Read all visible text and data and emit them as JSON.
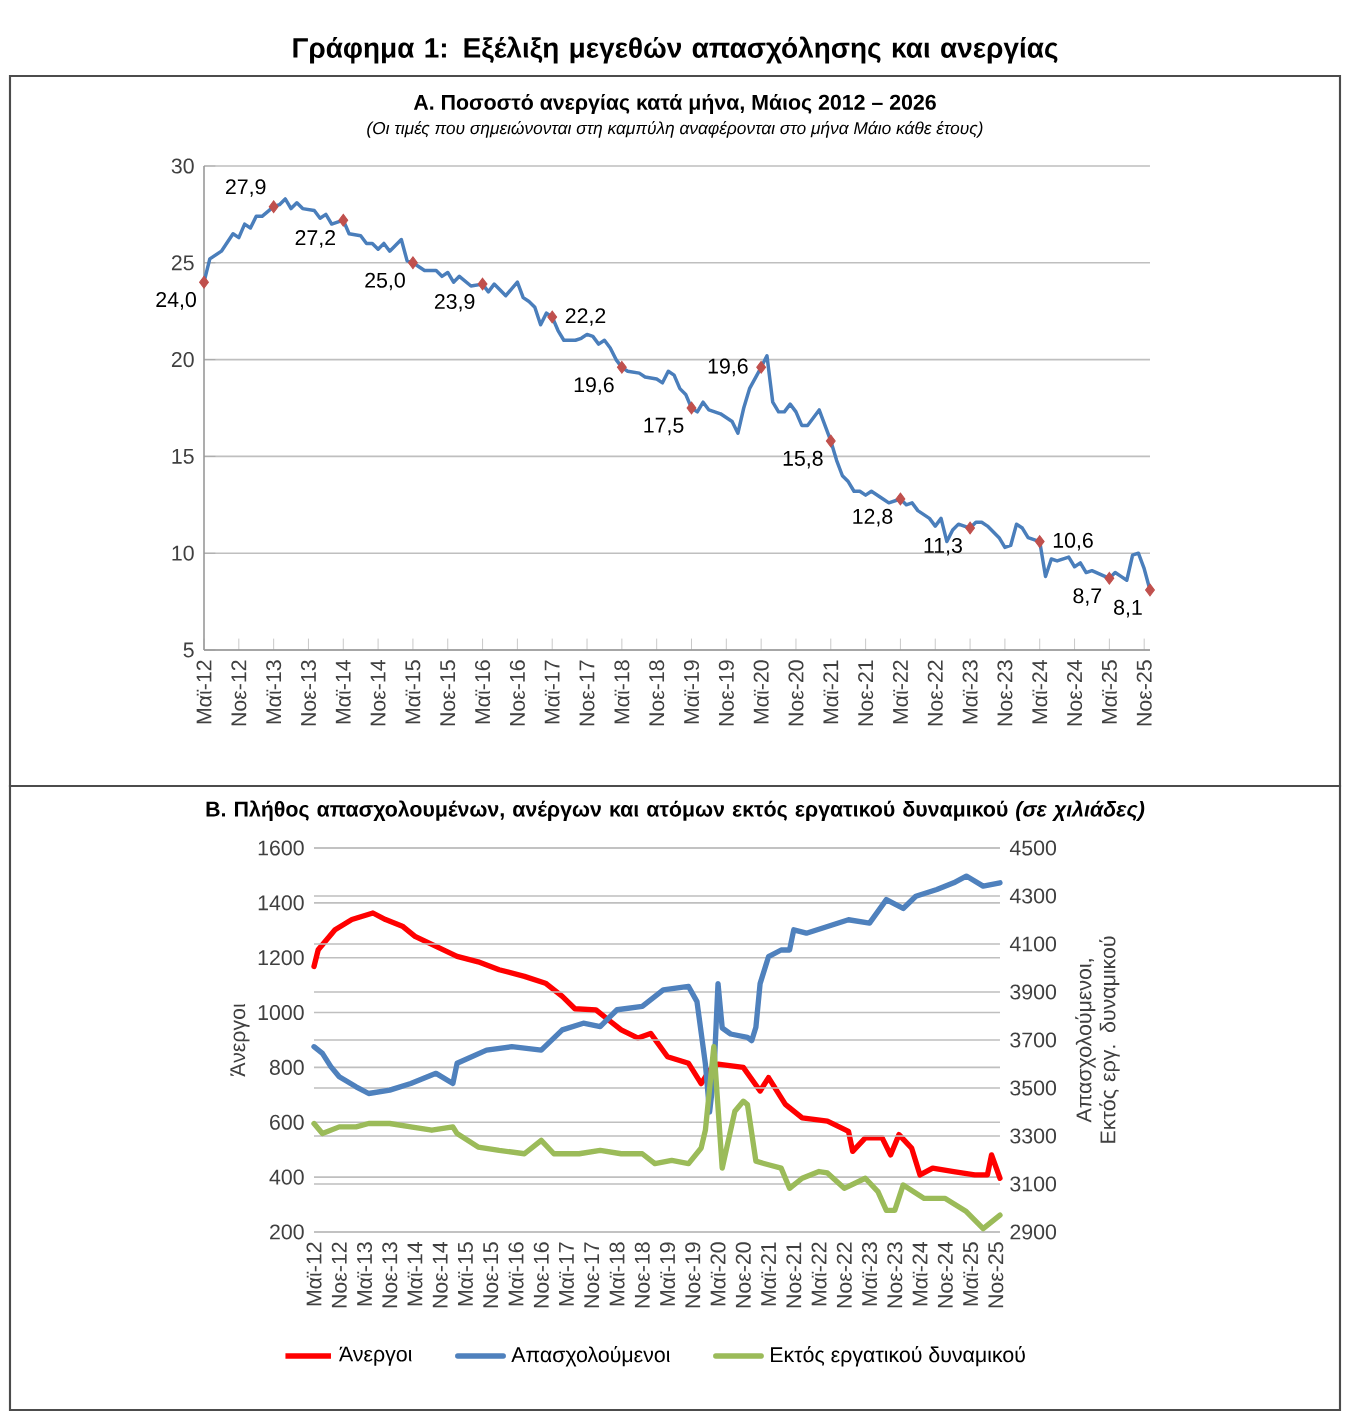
{
  "chart_data": [
    {
      "type": "line",
      "title": "Γράφημα 1: Εξέλιξη μεγεθών απασχόλησης και ανεργίας",
      "subtitle": "Α. Ποσοστό ανεργίας κατά μήνα, Μάιος 2012 – 2026",
      "annotations": [
        "(Οι τιμές που σημειώνονται στη καμπύλη αναφέρονται στο μήνα Μάιο κάθε έτους)"
      ],
      "xlim": [
        "2012-05",
        "2025-12"
      ],
      "xticks": [
        {
          "value": "2012-05",
          "label": "Μαϊ-12"
        },
        {
          "value": "2012-11",
          "label": "Νοε-12"
        },
        {
          "value": "2013-05",
          "label": "Μαϊ-13"
        },
        {
          "value": "2013-11",
          "label": "Νοε-13"
        },
        {
          "value": "2014-05",
          "label": "Μαϊ-14"
        },
        {
          "value": "2014-11",
          "label": "Νοε-14"
        },
        {
          "value": "2015-05",
          "label": "Μαϊ-15"
        },
        {
          "value": "2015-11",
          "label": "Νοε-15"
        },
        {
          "value": "2016-05",
          "label": "Μαϊ-16"
        },
        {
          "value": "2016-11",
          "label": "Νοε-16"
        },
        {
          "value": "2017-05",
          "label": "Μαϊ-17"
        },
        {
          "value": "2017-11",
          "label": "Νοε-17"
        },
        {
          "value": "2018-05",
          "label": "Μαϊ-18"
        },
        {
          "value": "2018-11",
          "label": "Νοε-18"
        },
        {
          "value": "2019-05",
          "label": "Μαϊ-19"
        },
        {
          "value": "2019-11",
          "label": "Νοε-19"
        },
        {
          "value": "2020-05",
          "label": "Μαϊ-20"
        },
        {
          "value": "2020-11",
          "label": "Νοε-20"
        },
        {
          "value": "2021-05",
          "label": "Μαϊ-21"
        },
        {
          "value": "2021-11",
          "label": "Νοε-21"
        },
        {
          "value": "2022-05",
          "label": "Μαϊ-22"
        },
        {
          "value": "2022-11",
          "label": "Νοε-22"
        },
        {
          "value": "2023-05",
          "label": "Μαϊ-23"
        },
        {
          "value": "2023-11",
          "label": "Νοε-23"
        },
        {
          "value": "2024-05",
          "label": "Μαϊ-24"
        },
        {
          "value": "2024-11",
          "label": "Νοε-24"
        },
        {
          "value": "2025-05",
          "label": "Μαϊ-25"
        },
        {
          "value": "2025-11",
          "label": "Νοε-25"
        }
      ],
      "ylim": [
        5,
        30
      ],
      "yticks": [
        5,
        10,
        15,
        20,
        25,
        30
      ],
      "grid": "y",
      "series": [
        {
          "type": "line",
          "color": "#4a7ebb",
          "x": [
            "2012-05",
            "2012-06",
            "2012-08",
            "2012-10",
            "2012-11",
            "2012-12",
            "2013-01",
            "2013-02",
            "2013-03",
            "2013-05",
            "2013-06",
            "2013-07",
            "2013-08",
            "2013-09",
            "2013-10",
            "2013-12",
            "2014-01",
            "2014-02",
            "2014-03",
            "2014-05",
            "2014-06",
            "2014-08",
            "2014-09",
            "2014-10",
            "2014-11",
            "2014-12",
            "2015-01",
            "2015-03",
            "2015-04",
            "2015-05",
            "2015-07",
            "2015-09",
            "2015-10",
            "2015-11",
            "2015-12",
            "2016-01",
            "2016-03",
            "2016-05",
            "2016-06",
            "2016-07",
            "2016-09",
            "2016-11",
            "2016-12",
            "2017-01",
            "2017-02",
            "2017-03",
            "2017-04",
            "2017-05",
            "2017-06",
            "2017-07",
            "2017-09",
            "2017-10",
            "2017-11",
            "2017-12",
            "2018-01",
            "2018-02",
            "2018-03",
            "2018-04",
            "2018-05",
            "2018-06",
            "2018-08",
            "2018-09",
            "2018-11",
            "2018-12",
            "2019-01",
            "2019-02",
            "2019-03",
            "2019-04",
            "2019-05",
            "2019-06",
            "2019-07",
            "2019-08",
            "2019-10",
            "2019-12",
            "2020-01",
            "2020-02",
            "2020-03",
            "2020-05",
            "2020-06",
            "2020-07",
            "2020-08",
            "2020-09",
            "2020-10",
            "2020-11",
            "2020-12",
            "2021-01",
            "2021-02",
            "2021-03",
            "2021-05",
            "2021-06",
            "2021-07",
            "2021-08",
            "2021-09",
            "2021-10",
            "2021-11",
            "2021-12",
            "2022-01",
            "2022-02",
            "2022-03",
            "2022-05",
            "2022-06",
            "2022-07",
            "2022-08",
            "2022-10",
            "2022-11",
            "2022-12",
            "2023-01",
            "2023-02",
            "2023-03",
            "2023-05",
            "2023-06",
            "2023-07",
            "2023-08",
            "2023-10",
            "2023-11",
            "2023-12",
            "2024-01",
            "2024-02",
            "2024-03",
            "2024-04",
            "2024-05",
            "2024-06",
            "2024-07",
            "2024-08",
            "2024-09",
            "2024-10",
            "2024-11",
            "2024-12",
            "2025-01",
            "2025-02",
            "2025-05",
            "2025-06",
            "2025-07",
            "2025-08",
            "2025-09",
            "2025-10",
            "2025-11",
            "2025-12"
          ],
          "values": [
            24.0,
            25.2,
            25.6,
            26.5,
            26.3,
            27.0,
            26.8,
            27.4,
            27.4,
            27.9,
            28.0,
            28.3,
            27.8,
            28.1,
            27.8,
            27.7,
            27.3,
            27.5,
            27.0,
            27.2,
            26.5,
            26.4,
            26.0,
            26.0,
            25.7,
            26.0,
            25.6,
            26.2,
            25.1,
            25.0,
            24.6,
            24.6,
            24.3,
            24.5,
            24.0,
            24.3,
            23.8,
            23.9,
            23.5,
            23.9,
            23.3,
            24.0,
            23.2,
            23.0,
            22.7,
            21.8,
            22.4,
            22.2,
            21.5,
            21.0,
            21.0,
            21.1,
            21.3,
            21.2,
            20.8,
            21.0,
            20.6,
            20.0,
            19.6,
            19.4,
            19.3,
            19.1,
            19.0,
            18.8,
            19.4,
            19.2,
            18.5,
            18.2,
            17.5,
            17.3,
            17.8,
            17.4,
            17.2,
            16.8,
            16.2,
            17.5,
            18.5,
            19.6,
            20.2,
            17.8,
            17.3,
            17.3,
            17.7,
            17.3,
            16.6,
            16.6,
            17.0,
            17.4,
            15.8,
            14.8,
            14.0,
            13.7,
            13.2,
            13.2,
            13.0,
            13.2,
            13.0,
            12.8,
            12.6,
            12.8,
            12.5,
            12.6,
            12.2,
            11.8,
            11.4,
            11.8,
            10.6,
            11.2,
            11.5,
            11.3,
            11.6,
            11.6,
            11.4,
            10.8,
            10.3,
            10.4,
            11.5,
            11.3,
            10.8,
            10.7,
            10.6,
            8.8,
            9.7,
            9.6,
            9.7,
            9.8,
            9.3,
            9.5,
            9.0,
            9.1,
            8.7,
            9.0,
            8.8,
            8.6,
            9.9,
            10.0,
            9.2,
            8.1
          ]
        },
        {
          "type": "scatter",
          "color": "#c0504d",
          "marker": "diamond",
          "x": [
            "2012-05",
            "2013-05",
            "2014-05",
            "2015-05",
            "2016-05",
            "2017-05",
            "2018-05",
            "2019-05",
            "2020-05",
            "2021-05",
            "2022-05",
            "2023-05",
            "2024-05",
            "2025-05",
            "2025-12"
          ],
          "values": [
            24.0,
            27.9,
            27.2,
            25.0,
            23.9,
            22.2,
            19.6,
            17.5,
            19.6,
            15.8,
            12.8,
            11.3,
            10.6,
            8.7,
            8.1
          ],
          "value_labels": [
            "24,0",
            "27,9",
            "27,2",
            "25,0",
            "23,9",
            "22,2",
            "19,6",
            "17,5",
            "19,6",
            "15,8",
            "12,8",
            "11,3",
            "10,6",
            "8,7",
            "8,1"
          ]
        }
      ]
    },
    {
      "type": "line",
      "title": "Β. Πλήθος απασχολουμένων, ανέργων και ατόμων εκτός εργατικού δυναμικού *(σε χιλιάδες)*",
      "ylabel": "Άνεργοι",
      "y2label": "Απασχολούμενοι, Εκτός εργ. δυναμικού",
      "xlim": [
        "2012-05",
        "2025-12"
      ],
      "xticks": [
        {
          "value": "2012-05",
          "label": "Μαϊ-12"
        },
        {
          "value": "2012-11",
          "label": "Νοε-12"
        },
        {
          "value": "2013-05",
          "label": "Μαϊ-13"
        },
        {
          "value": "2013-11",
          "label": "Νοε-13"
        },
        {
          "value": "2014-05",
          "label": "Μαϊ-14"
        },
        {
          "value": "2014-11",
          "label": "Νοε-14"
        },
        {
          "value": "2015-05",
          "label": "Μαϊ-15"
        },
        {
          "value": "2015-11",
          "label": "Νοε-15"
        },
        {
          "value": "2016-05",
          "label": "Μαϊ-16"
        },
        {
          "value": "2016-11",
          "label": "Νοε-16"
        },
        {
          "value": "2017-05",
          "label": "Μαϊ-17"
        },
        {
          "value": "2017-11",
          "label": "Νοε-17"
        },
        {
          "value": "2018-05",
          "label": "Μαϊ-18"
        },
        {
          "value": "2018-11",
          "label": "Νοε-18"
        },
        {
          "value": "2019-05",
          "label": "Μαϊ-19"
        },
        {
          "value": "2019-11",
          "label": "Νοε-19"
        },
        {
          "value": "2020-05",
          "label": "Μαϊ-20"
        },
        {
          "value": "2020-11",
          "label": "Νοε-20"
        },
        {
          "value": "2021-05",
          "label": "Μαϊ-21"
        },
        {
          "value": "2021-11",
          "label": "Νοε-21"
        },
        {
          "value": "2022-05",
          "label": "Μαϊ-22"
        },
        {
          "value": "2022-11",
          "label": "Νοε-22"
        },
        {
          "value": "2023-05",
          "label": "Μαϊ-23"
        },
        {
          "value": "2023-11",
          "label": "Νοε-23"
        },
        {
          "value": "2024-05",
          "label": "Μαϊ-24"
        },
        {
          "value": "2024-11",
          "label": "Νοε-24"
        },
        {
          "value": "2025-05",
          "label": "Μαϊ-25"
        },
        {
          "value": "2025-11",
          "label": "Νοε-25"
        }
      ],
      "ylim": [
        200,
        1600
      ],
      "yticks": [
        200,
        400,
        600,
        800,
        1000,
        1200,
        1400,
        1600
      ],
      "y2lim": [
        2900,
        4500
      ],
      "y2ticks": [
        2900,
        3100,
        3300,
        3500,
        3700,
        3900,
        4100,
        4300,
        4500
      ],
      "grid": "y",
      "legend": "bottom",
      "series": [
        {
          "name": "Άνεργοι",
          "color": "#ff0000",
          "x": [
            "2012-05",
            "2012-06",
            "2012-10",
            "2013-02",
            "2013-07",
            "2013-10",
            "2014-02",
            "2014-05",
            "2014-10",
            "2015-03",
            "2015-08",
            "2016-01",
            "2016-07",
            "2016-12",
            "2017-04",
            "2017-07",
            "2017-12",
            "2018-03",
            "2018-06",
            "2018-10",
            "2019-01",
            "2019-05",
            "2019-10",
            "2020-01",
            "2020-03",
            "2020-05",
            "2020-11",
            "2021-03",
            "2021-05",
            "2021-09",
            "2022-01",
            "2022-07",
            "2022-12",
            "2023-01",
            "2023-04",
            "2023-08",
            "2023-10",
            "2023-12",
            "2024-03",
            "2024-05",
            "2024-08",
            "2025-01",
            "2025-06",
            "2025-09",
            "2025-10",
            "2025-12"
          ],
          "values": [
            1168,
            1229,
            1302,
            1339,
            1363,
            1339,
            1315,
            1278,
            1241,
            1205,
            1185,
            1156,
            1132,
            1107,
            1059,
            1014,
            1010,
            973,
            937,
            907,
            924,
            839,
            815,
            741,
            790,
            812,
            800,
            714,
            763,
            665,
            616,
            604,
            567,
            494,
            543,
            543,
            481,
            555,
            506,
            408,
            433,
            420,
            408,
            408,
            481,
            396
          ]
        },
        {
          "name": "Απασχολούμενοι",
          "color": "#4f81bd",
          "axis": "y2",
          "x": [
            "2012-05",
            "2012-07",
            "2012-09",
            "2012-11",
            "2013-03",
            "2013-06",
            "2013-11",
            "2014-04",
            "2014-10",
            "2015-02",
            "2015-03",
            "2015-10",
            "2016-04",
            "2016-11",
            "2017-04",
            "2017-09",
            "2018-01",
            "2018-05",
            "2018-11",
            "2019-04",
            "2019-10",
            "2019-12",
            "2020-02",
            "2020-03",
            "2020-04",
            "2020-05",
            "2020-06",
            "2020-08",
            "2020-12",
            "2021-01",
            "2021-02",
            "2021-03",
            "2021-05",
            "2021-08",
            "2021-10",
            "2021-11",
            "2022-02",
            "2022-07",
            "2022-12",
            "2023-05",
            "2023-09",
            "2024-01",
            "2024-04",
            "2024-09",
            "2025-01",
            "2025-04",
            "2025-08",
            "2025-12"
          ],
          "values": [
            3672,
            3644,
            3589,
            3547,
            3505,
            3477,
            3491,
            3519,
            3561,
            3519,
            3603,
            3658,
            3672,
            3658,
            3742,
            3770,
            3756,
            3826,
            3840,
            3909,
            3923,
            3860,
            3600,
            3400,
            3550,
            3935,
            3750,
            3725,
            3711,
            3697,
            3753,
            3935,
            4047,
            4075,
            4075,
            4159,
            4145,
            4173,
            4201,
            4187,
            4285,
            4248,
            4299,
            4327,
            4355,
            4383,
            4341,
            4355
          ]
        },
        {
          "name": "Εκτός εργατικού δυναμικού",
          "color": "#9bbb59",
          "axis": "y2",
          "x": [
            "2012-05",
            "2012-07",
            "2012-11",
            "2013-03",
            "2013-06",
            "2013-11",
            "2014-04",
            "2014-09",
            "2015-02",
            "2015-03",
            "2015-08",
            "2016-01",
            "2016-07",
            "2016-11",
            "2017-02",
            "2017-08",
            "2018-01",
            "2018-06",
            "2018-11",
            "2019-02",
            "2019-06",
            "2019-10",
            "2020-01",
            "2020-02",
            "2020-04",
            "2020-06",
            "2020-09",
            "2020-11",
            "2020-12",
            "2021-02",
            "2021-05",
            "2021-08",
            "2021-10",
            "2022-01",
            "2022-05",
            "2022-07",
            "2022-11",
            "2023-04",
            "2023-07",
            "2023-09",
            "2023-11",
            "2024-01",
            "2024-06",
            "2024-11",
            "2025-04",
            "2025-08",
            "2025-12"
          ],
          "values": [
            3352,
            3310,
            3338,
            3338,
            3352,
            3352,
            3338,
            3324,
            3338,
            3310,
            3254,
            3240,
            3226,
            3282,
            3226,
            3226,
            3240,
            3226,
            3226,
            3185,
            3198,
            3185,
            3250,
            3324,
            3672,
            3166,
            3403,
            3445,
            3431,
            3195,
            3180,
            3166,
            3082,
            3124,
            3152,
            3146,
            3082,
            3124,
            3068,
            2990,
            2990,
            3096,
            3040,
            3040,
            2985,
            2914,
            2970
          ]
        }
      ]
    }
  ]
}
